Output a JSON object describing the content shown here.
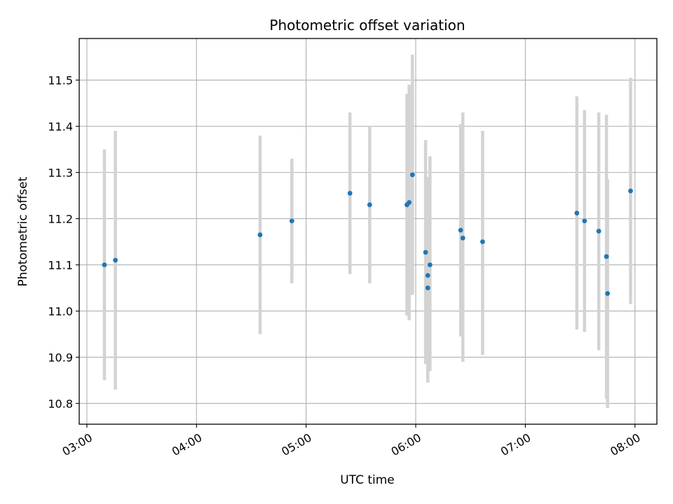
{
  "chart_data": {
    "type": "scatter",
    "title": "Photometric offset variation",
    "xlabel": "UTC time",
    "ylabel": "Photometric offset",
    "x_unit": "hours",
    "xlim": [
      2.93,
      8.2
    ],
    "ylim": [
      10.755,
      11.59
    ],
    "x_ticks": [
      {
        "value": 3,
        "label": "03:00"
      },
      {
        "value": 4,
        "label": "04:00"
      },
      {
        "value": 5,
        "label": "05:00"
      },
      {
        "value": 6,
        "label": "06:00"
      },
      {
        "value": 7,
        "label": "07:00"
      },
      {
        "value": 8,
        "label": "08:00"
      }
    ],
    "y_ticks": [
      {
        "value": 10.8,
        "label": "10.8"
      },
      {
        "value": 10.9,
        "label": "10.9"
      },
      {
        "value": 11.0,
        "label": "11.0"
      },
      {
        "value": 11.1,
        "label": "11.1"
      },
      {
        "value": 11.2,
        "label": "11.2"
      },
      {
        "value": 11.3,
        "label": "11.3"
      },
      {
        "value": 11.4,
        "label": "11.4"
      },
      {
        "value": 11.5,
        "label": "11.5"
      }
    ],
    "grid": true,
    "colors": {
      "point": "#1f77b4",
      "errorbar": "#d3d3d3",
      "grid": "#b0b0b0"
    },
    "points": [
      {
        "x": 3.16,
        "y": 11.1,
        "ylow": 10.85,
        "yhigh": 11.35
      },
      {
        "x": 3.26,
        "y": 11.11,
        "ylow": 10.83,
        "yhigh": 11.39
      },
      {
        "x": 4.58,
        "y": 11.165,
        "ylow": 10.95,
        "yhigh": 11.38
      },
      {
        "x": 4.87,
        "y": 11.195,
        "ylow": 11.06,
        "yhigh": 11.33
      },
      {
        "x": 5.4,
        "y": 11.255,
        "ylow": 11.08,
        "yhigh": 11.43
      },
      {
        "x": 5.58,
        "y": 11.23,
        "ylow": 11.06,
        "yhigh": 11.4
      },
      {
        "x": 5.92,
        "y": 11.23,
        "ylow": 10.99,
        "yhigh": 11.47
      },
      {
        "x": 5.94,
        "y": 11.235,
        "ylow": 10.98,
        "yhigh": 11.49
      },
      {
        "x": 5.97,
        "y": 11.295,
        "ylow": 11.035,
        "yhigh": 11.555
      },
      {
        "x": 6.09,
        "y": 11.127,
        "ylow": 10.885,
        "yhigh": 11.37
      },
      {
        "x": 6.11,
        "y": 11.077,
        "ylow": 10.845,
        "yhigh": 11.29
      },
      {
        "x": 6.11,
        "y": 11.05,
        "ylow": 10.85,
        "yhigh": 11.29
      },
      {
        "x": 6.13,
        "y": 11.1,
        "ylow": 10.87,
        "yhigh": 11.335
      },
      {
        "x": 6.41,
        "y": 11.175,
        "ylow": 10.945,
        "yhigh": 11.405
      },
      {
        "x": 6.43,
        "y": 11.158,
        "ylow": 10.89,
        "yhigh": 11.43
      },
      {
        "x": 6.61,
        "y": 11.15,
        "ylow": 10.905,
        "yhigh": 11.39
      },
      {
        "x": 7.47,
        "y": 11.212,
        "ylow": 10.96,
        "yhigh": 11.465
      },
      {
        "x": 7.54,
        "y": 11.195,
        "ylow": 10.955,
        "yhigh": 11.435
      },
      {
        "x": 7.67,
        "y": 11.173,
        "ylow": 10.915,
        "yhigh": 11.43
      },
      {
        "x": 7.74,
        "y": 11.118,
        "ylow": 10.81,
        "yhigh": 11.425
      },
      {
        "x": 7.75,
        "y": 11.038,
        "ylow": 10.79,
        "yhigh": 11.285
      },
      {
        "x": 7.96,
        "y": 11.26,
        "ylow": 11.015,
        "yhigh": 11.505
      }
    ]
  }
}
